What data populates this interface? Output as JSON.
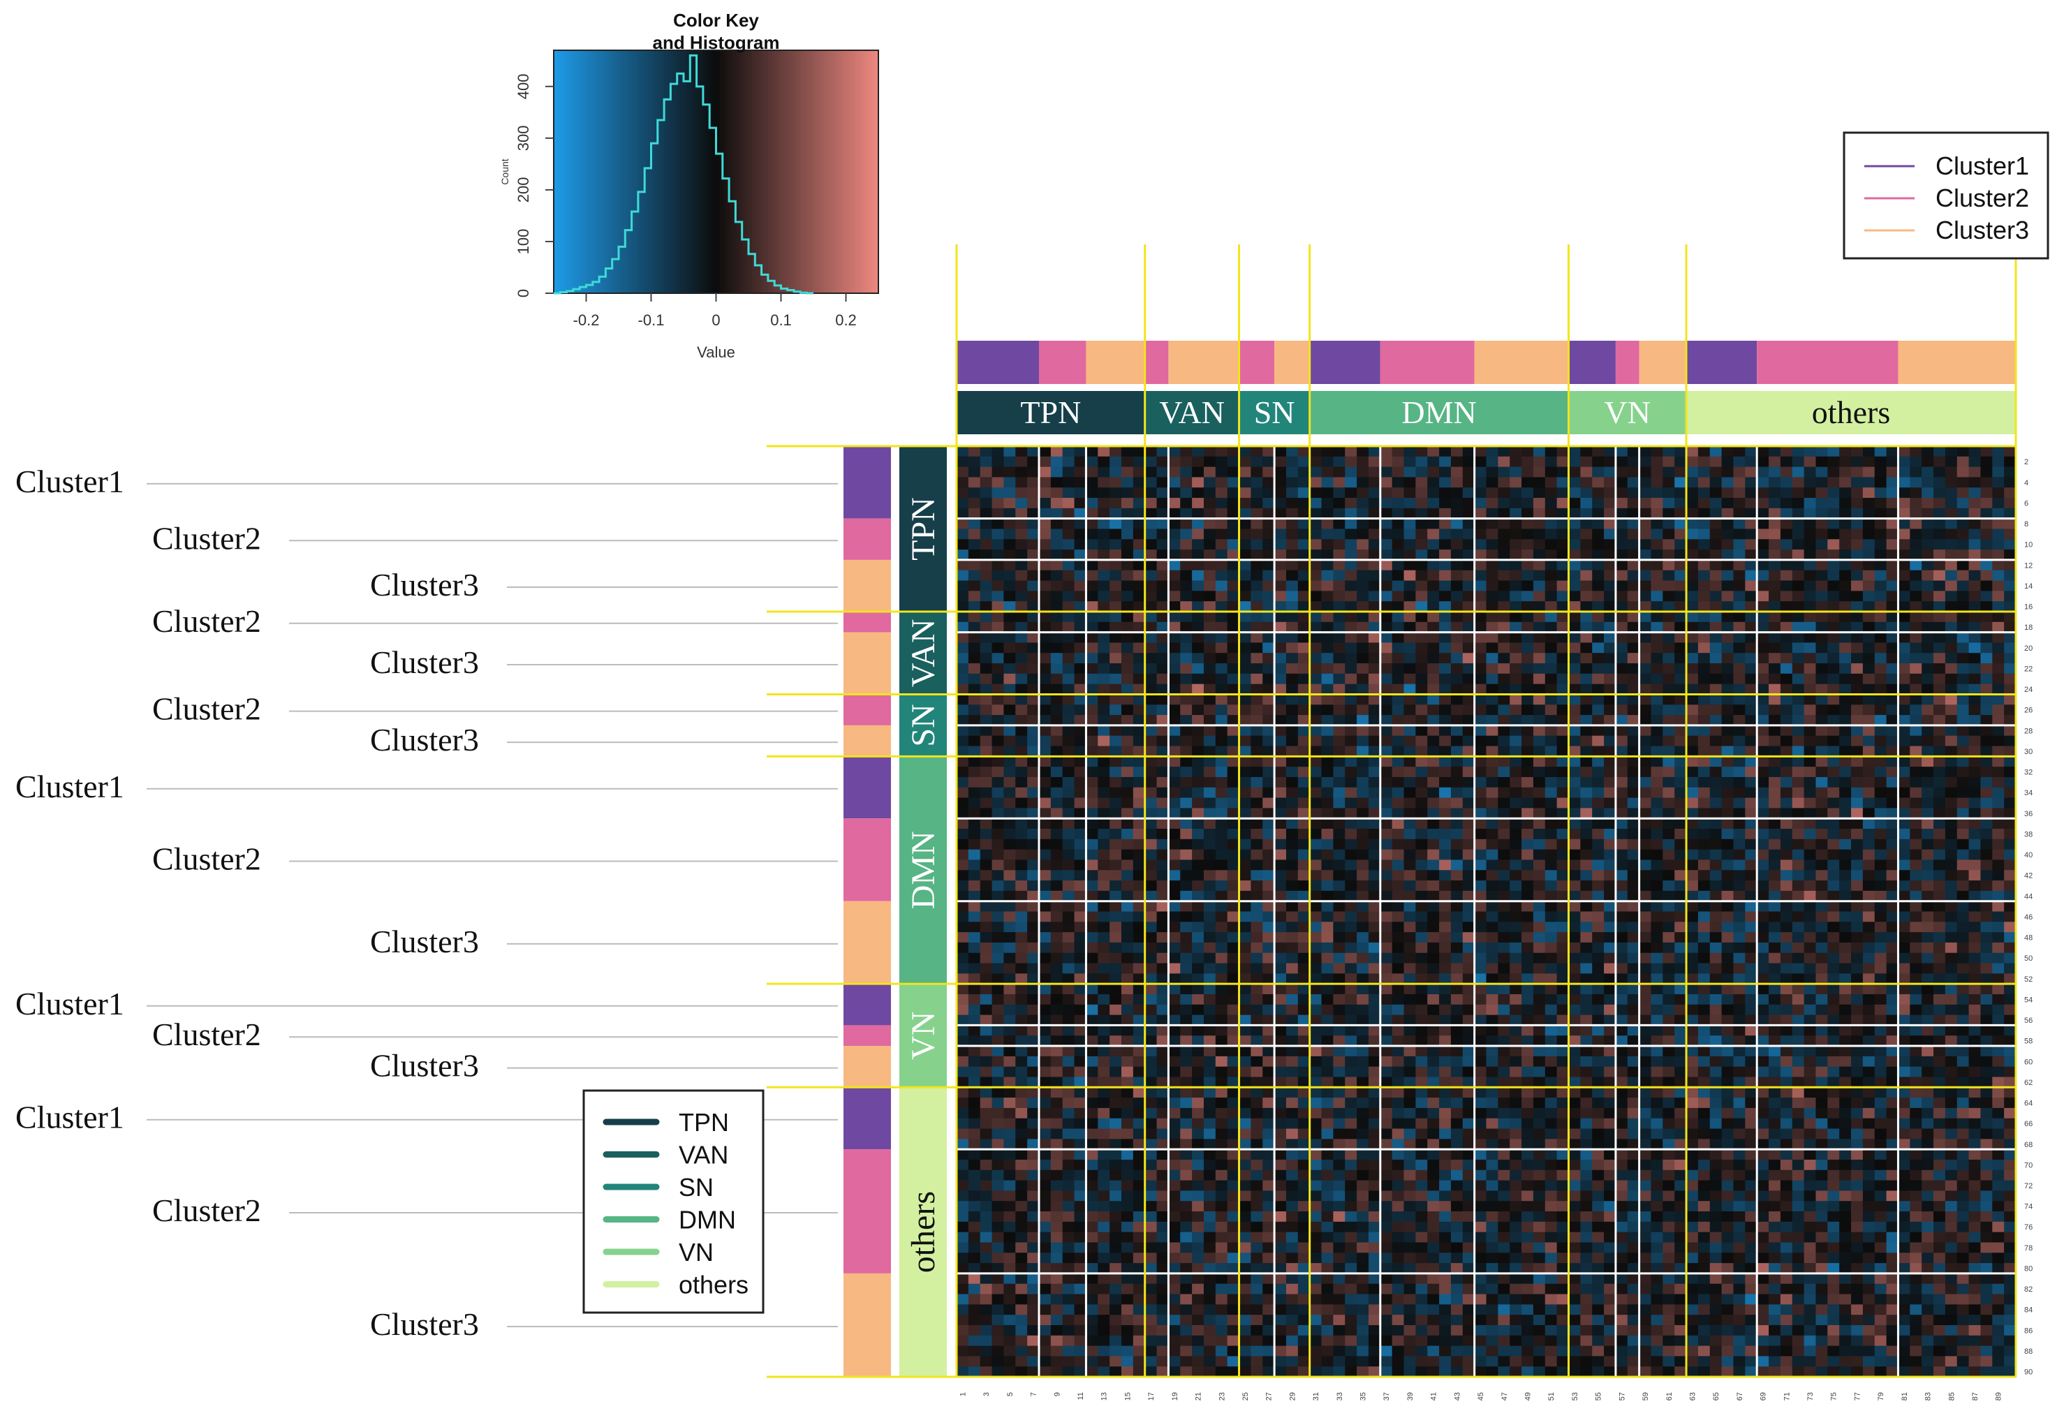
{
  "chart_data": {
    "type": "heatmap",
    "title": "Color Key and Histogram",
    "matrix_size": 90,
    "value_range": [
      -0.25,
      0.25
    ],
    "colors": {
      "low": "#1e9be8",
      "mid": "#0c0c0c",
      "high": "#ee8880"
    },
    "histogram": {
      "title_line1": "Color Key",
      "title_line2": "and Histogram",
      "xlabel": "Value",
      "ylabel": "Count",
      "x_ticks": [
        "-0.2",
        "-0.1",
        "0",
        "0.1",
        "0.2"
      ],
      "x_tick_values": [
        -0.2,
        -0.1,
        0,
        0.1,
        0.2
      ],
      "y_ticks": [
        "0",
        "100",
        "200",
        "300",
        "400"
      ],
      "y_tick_values": [
        0,
        100,
        200,
        300,
        400
      ],
      "xlim": [
        -0.25,
        0.25
      ],
      "ylim": [
        0,
        470
      ],
      "bin_width": 0.01,
      "counts": [
        0,
        2,
        4,
        8,
        12,
        16,
        22,
        32,
        48,
        66,
        90,
        122,
        158,
        196,
        242,
        290,
        335,
        375,
        405,
        425,
        410,
        460,
        400,
        365,
        320,
        270,
        222,
        178,
        138,
        104,
        76,
        54,
        36,
        24,
        15,
        9,
        6,
        3,
        1,
        0
      ],
      "line_color": "#3fdad8"
    },
    "networks": [
      {
        "name": "TPN",
        "start": 1,
        "end": 16,
        "color": "#163f4a",
        "text_color": "#ffffff"
      },
      {
        "name": "VAN",
        "start": 17,
        "end": 24,
        "color": "#19605e",
        "text_color": "#ffffff"
      },
      {
        "name": "SN",
        "start": 25,
        "end": 30,
        "color": "#21857a",
        "text_color": "#ffffff"
      },
      {
        "name": "DMN",
        "start": 31,
        "end": 52,
        "color": "#56b485",
        "text_color": "#ffffff"
      },
      {
        "name": "VN",
        "start": 53,
        "end": 62,
        "color": "#86d28d",
        "text_color": "#ffffff"
      },
      {
        "name": "others",
        "start": 63,
        "end": 90,
        "color": "#d3f0a0",
        "text_color": "#111111"
      }
    ],
    "clusters": [
      {
        "network": "TPN",
        "segments": [
          {
            "cluster": "Cluster1",
            "start": 1,
            "end": 7
          },
          {
            "cluster": "Cluster2",
            "start": 8,
            "end": 11
          },
          {
            "cluster": "Cluster3",
            "start": 12,
            "end": 16
          }
        ]
      },
      {
        "network": "VAN",
        "segments": [
          {
            "cluster": "Cluster2",
            "start": 17,
            "end": 18
          },
          {
            "cluster": "Cluster3",
            "start": 19,
            "end": 24
          }
        ]
      },
      {
        "network": "SN",
        "segments": [
          {
            "cluster": "Cluster2",
            "start": 25,
            "end": 27
          },
          {
            "cluster": "Cluster3",
            "start": 28,
            "end": 30
          }
        ]
      },
      {
        "network": "DMN",
        "segments": [
          {
            "cluster": "Cluster1",
            "start": 31,
            "end": 36
          },
          {
            "cluster": "Cluster2",
            "start": 37,
            "end": 44
          },
          {
            "cluster": "Cluster3",
            "start": 45,
            "end": 52
          }
        ]
      },
      {
        "network": "VN",
        "segments": [
          {
            "cluster": "Cluster1",
            "start": 53,
            "end": 56
          },
          {
            "cluster": "Cluster2",
            "start": 57,
            "end": 58
          },
          {
            "cluster": "Cluster3",
            "start": 59,
            "end": 62
          }
        ]
      },
      {
        "network": "others",
        "segments": [
          {
            "cluster": "Cluster1",
            "start": 63,
            "end": 68
          },
          {
            "cluster": "Cluster2",
            "start": 69,
            "end": 80
          },
          {
            "cluster": "Cluster3",
            "start": 81,
            "end": 90
          }
        ]
      }
    ],
    "cluster_colors": {
      "Cluster1": "#6f48a2",
      "Cluster2": "#e0699f",
      "Cluster3": "#f7b881"
    },
    "row_cluster_labels": [
      {
        "text": "Cluster1",
        "level": 1,
        "start": 1,
        "end": 7
      },
      {
        "text": "Cluster2",
        "level": 2,
        "start": 8,
        "end": 11
      },
      {
        "text": "Cluster3",
        "level": 3,
        "start": 12,
        "end": 16
      },
      {
        "text": "Cluster2",
        "level": 2,
        "start": 17,
        "end": 18
      },
      {
        "text": "Cluster3",
        "level": 3,
        "start": 19,
        "end": 24
      },
      {
        "text": "Cluster2",
        "level": 2,
        "start": 25,
        "end": 27
      },
      {
        "text": "Cluster3",
        "level": 3,
        "start": 28,
        "end": 30
      },
      {
        "text": "Cluster1",
        "level": 1,
        "start": 31,
        "end": 36
      },
      {
        "text": "Cluster2",
        "level": 2,
        "start": 37,
        "end": 44
      },
      {
        "text": "Cluster3",
        "level": 3,
        "start": 45,
        "end": 52
      },
      {
        "text": "Cluster1",
        "level": 1,
        "start": 53,
        "end": 56
      },
      {
        "text": "Cluster2",
        "level": 2,
        "start": 57,
        "end": 58
      },
      {
        "text": "Cluster3",
        "level": 3,
        "start": 59,
        "end": 62
      },
      {
        "text": "Cluster1",
        "level": 1,
        "start": 63,
        "end": 68
      },
      {
        "text": "Cluster2",
        "level": 2,
        "start": 69,
        "end": 80
      },
      {
        "text": "Cluster3",
        "level": 3,
        "start": 81,
        "end": 90
      }
    ],
    "cluster_legend": [
      "Cluster1",
      "Cluster2",
      "Cluster3"
    ],
    "network_legend": [
      "TPN",
      "VAN",
      "SN",
      "DMN",
      "VN",
      "others"
    ],
    "row_tick_labels": [
      "2",
      "4",
      "6",
      "8",
      "10",
      "12",
      "14",
      "16",
      "18",
      "20",
      "22",
      "24",
      "26",
      "28",
      "30",
      "32",
      "34",
      "36",
      "38",
      "40",
      "42",
      "44",
      "46",
      "48",
      "50",
      "52",
      "54",
      "56",
      "58",
      "60",
      "62",
      "64",
      "66",
      "68",
      "70",
      "72",
      "74",
      "76",
      "78",
      "80",
      "82",
      "84",
      "86",
      "88",
      "90"
    ],
    "col_tick_labels": [
      "1",
      "3",
      "5",
      "7",
      "9",
      "11",
      "13",
      "15",
      "17",
      "19",
      "21",
      "23",
      "25",
      "27",
      "29",
      "31",
      "33",
      "35",
      "37",
      "39",
      "41",
      "43",
      "45",
      "47",
      "49",
      "51",
      "53",
      "55",
      "57",
      "59",
      "61",
      "63",
      "65",
      "67",
      "69",
      "71",
      "73",
      "75",
      "77",
      "79",
      "81",
      "83",
      "85",
      "87",
      "89"
    ],
    "separator_colors": {
      "network": "#f2e51b",
      "cluster": "#ffffff"
    }
  }
}
